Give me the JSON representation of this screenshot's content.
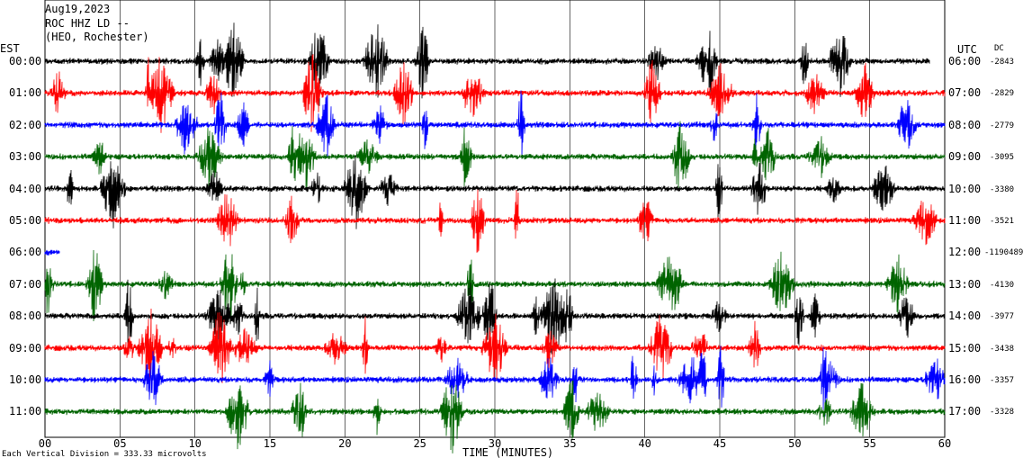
{
  "header": {
    "date": "Aug19,2023",
    "station": "ROC HHZ LD --",
    "location": "(HEO, Rochester)"
  },
  "left_axis_label": "EST",
  "right_axis_label": "UTC",
  "dc_header": "DC",
  "x_axis_title": "TIME (MINUTES)",
  "footer_note": "Each Vertical Division = 333.33 microvolts",
  "chart_data": {
    "type": "line",
    "title": "ROC HHZ LD -- (HEO, Rochester) Aug19,2023",
    "xlabel": "TIME (MINUTES)",
    "xlim": [
      0,
      60
    ],
    "x_ticks": [
      "00",
      "05",
      "10",
      "15",
      "20",
      "25",
      "30",
      "35",
      "40",
      "45",
      "50",
      "55",
      "60"
    ],
    "grid": "vertical lines every 5 minutes",
    "trace_colors": [
      "#000000",
      "#ff0000",
      "#0000ff",
      "#006400"
    ],
    "rows": [
      {
        "est": "00:00",
        "utc": "06:00",
        "dc": "-2843",
        "color": "#000000",
        "end_minute": 59
      },
      {
        "est": "01:00",
        "utc": "07:00",
        "dc": "-2829",
        "color": "#ff0000",
        "end_minute": 60
      },
      {
        "est": "02:00",
        "utc": "08:00",
        "dc": "-2779",
        "color": "#0000ff",
        "end_minute": 60
      },
      {
        "est": "03:00",
        "utc": "09:00",
        "dc": "-3095",
        "color": "#006400",
        "end_minute": 60
      },
      {
        "est": "04:00",
        "utc": "10:00",
        "dc": "-3380",
        "color": "#000000",
        "end_minute": 60
      },
      {
        "est": "05:00",
        "utc": "11:00",
        "dc": "-3521",
        "color": "#ff0000",
        "end_minute": 60
      },
      {
        "est": "06:00",
        "utc": "12:00",
        "dc": "-1190489",
        "color": "#0000ff",
        "end_minute": 1
      },
      {
        "est": "07:00",
        "utc": "13:00",
        "dc": "-4130",
        "color": "#006400",
        "end_minute": 60
      },
      {
        "est": "08:00",
        "utc": "14:00",
        "dc": "-3977",
        "color": "#000000",
        "end_minute": 60
      },
      {
        "est": "09:00",
        "utc": "15:00",
        "dc": "-3438",
        "color": "#ff0000",
        "end_minute": 60
      },
      {
        "est": "10:00",
        "utc": "16:00",
        "dc": "-3357",
        "color": "#0000ff",
        "end_minute": 60
      },
      {
        "est": "11:00",
        "utc": "17:00",
        "dc": "-3328",
        "color": "#006400",
        "end_minute": 60
      }
    ]
  }
}
